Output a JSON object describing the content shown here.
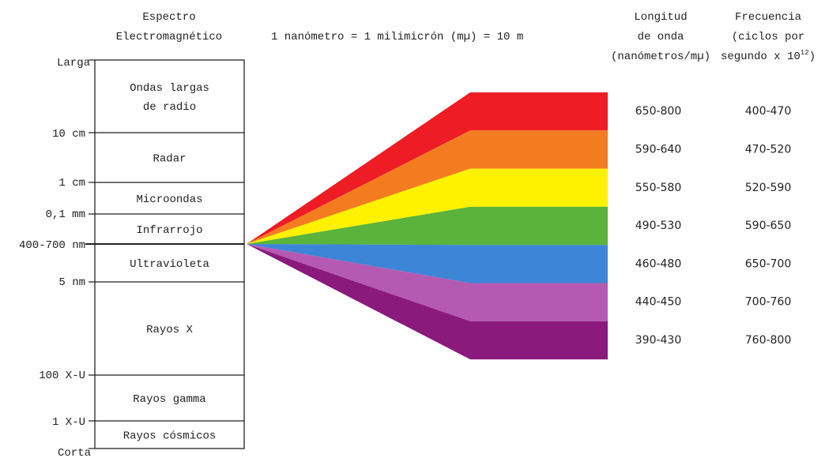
{
  "header": {
    "spectrum_title_line1": "Espectro",
    "spectrum_title_line2": "Electromagnético",
    "equation": "1 nanómetro = 1 milimicrón (mµ) = 10  m",
    "wavelength_header": [
      "Longitud",
      "de onda",
      "(nanómetros/mµ)"
    ],
    "frequency_header_line1": "Frecuencia",
    "frequency_header_line2": "(ciclos por",
    "frequency_header_line3_text": "segundo x 10",
    "frequency_header_line3_exp": "12",
    "frequency_header_line3_close": ")"
  },
  "scale_labels": {
    "top": "Larga",
    "bottom": "Corta",
    "marks": [
      "10 cm",
      "1 cm",
      "0,1 mm",
      "400-700 nm",
      "5 nm",
      "100 X-U",
      "1 X-U"
    ]
  },
  "bands": [
    {
      "name": "ondas-largas",
      "lines": [
        "Ondas largas",
        "de radio"
      ]
    },
    {
      "name": "radar",
      "lines": [
        "Radar"
      ]
    },
    {
      "name": "microondas",
      "lines": [
        "Microondas"
      ]
    },
    {
      "name": "infrarrojo",
      "lines": [
        "Infrarrojo"
      ]
    },
    {
      "name": "ultravioleta",
      "lines": [
        "Ultravioleta"
      ]
    },
    {
      "name": "rayos-x",
      "lines": [
        "Rayos X"
      ]
    },
    {
      "name": "rayos-gamma",
      "lines": [
        "Rayos gamma"
      ]
    },
    {
      "name": "rayos-cosmicos",
      "lines": [
        "Rayos cósmicos"
      ]
    }
  ],
  "visible_colors": [
    {
      "color": "#ee1c25",
      "wavelength": "650-800",
      "frequency": "400-470"
    },
    {
      "color": "#f47c20",
      "wavelength": "590-640",
      "frequency": "470-520"
    },
    {
      "color": "#fff200",
      "wavelength": "550-580",
      "frequency": "520-590"
    },
    {
      "color": "#5ab33a",
      "wavelength": "490-530",
      "frequency": "590-650"
    },
    {
      "color": "#3d85d6",
      "wavelength": "460-480",
      "frequency": "650-700"
    },
    {
      "color": "#b55ab3",
      "wavelength": "440-450",
      "frequency": "700-760"
    },
    {
      "color": "#8a1a7c",
      "wavelength": "390-430",
      "frequency": "760-800"
    }
  ]
}
